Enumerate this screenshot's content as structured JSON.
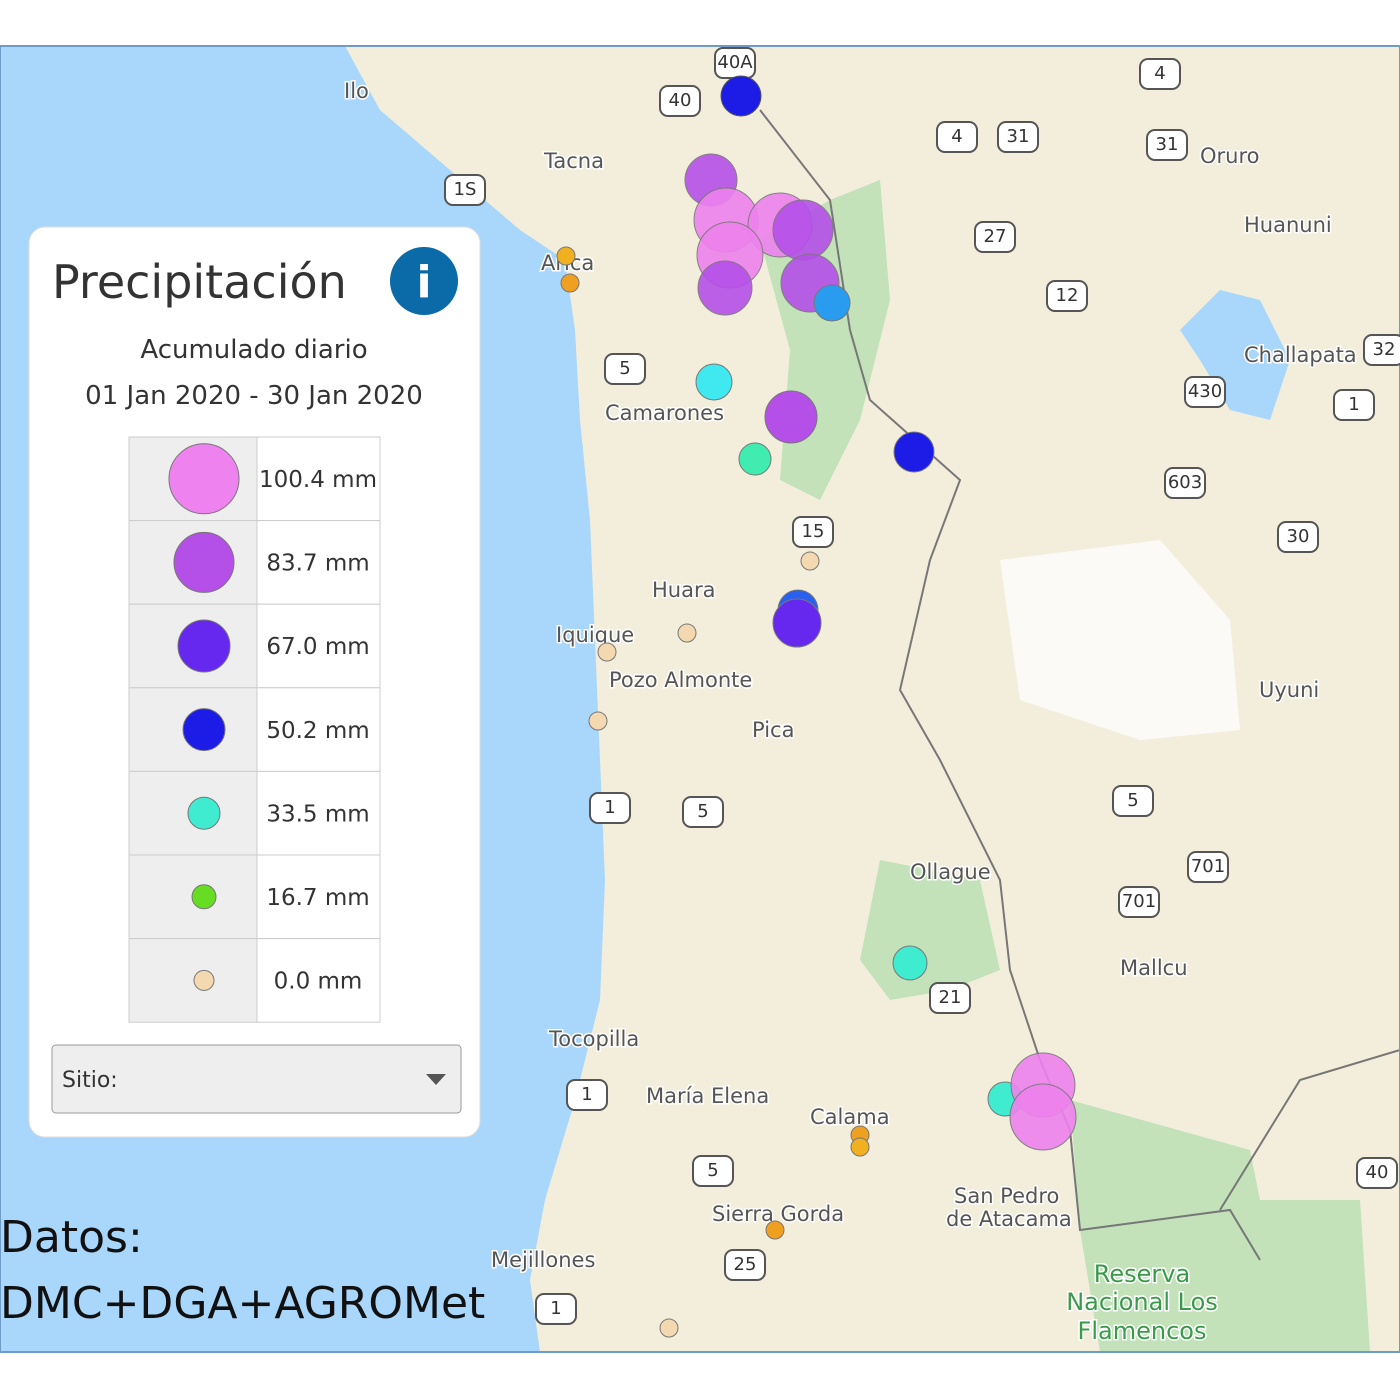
{
  "panel": {
    "title": "Precipitación",
    "info": "i",
    "subtitle": "Acumulado diario",
    "date_range": "01 Jan 2020 - 30 Jan 2020",
    "legend": [
      {
        "label": "100.4 mm",
        "color": "#ee82ee"
      },
      {
        "label": "83.7 mm",
        "color": "#b450e8"
      },
      {
        "label": "67.0 mm",
        "color": "#6628ee"
      },
      {
        "label": "50.2 mm",
        "color": "#1c1ce6"
      },
      {
        "label": "33.5 mm",
        "color": "#40ecd0"
      },
      {
        "label": "16.7 mm",
        "color": "#66dd22"
      },
      {
        "label": "0.0 mm",
        "color": "#f4d8b0"
      }
    ],
    "dropdown": "Sitio:"
  },
  "footer": {
    "line1": "Datos:",
    "line2": "DMC+DGA+AGROMet"
  },
  "places": [
    "Ilo",
    "Tacna",
    "Arica",
    "Oruro",
    "Huanuni",
    "Challapata",
    "Camarones",
    "Huara",
    "Iquique",
    "Pozo Almonte",
    "Pica",
    "Uyuni",
    "Ollague",
    "Mallcu",
    "Tocopilla",
    "María Elena",
    "Calama",
    "Sierra Gorda",
    "San Pedro",
    "de Atacama",
    "Mejillones"
  ],
  "reserve": [
    "Reserva",
    "Nacional Los",
    "Flamencos"
  ],
  "roads": [
    "40A",
    "40",
    "4",
    "4",
    "31",
    "31",
    "1S",
    "27",
    "12",
    "5",
    "430",
    "1",
    "32",
    "603",
    "15",
    "30",
    "5",
    "5",
    "1",
    "701",
    "701",
    "21",
    "1",
    "5",
    "25",
    "1",
    "40"
  ]
}
